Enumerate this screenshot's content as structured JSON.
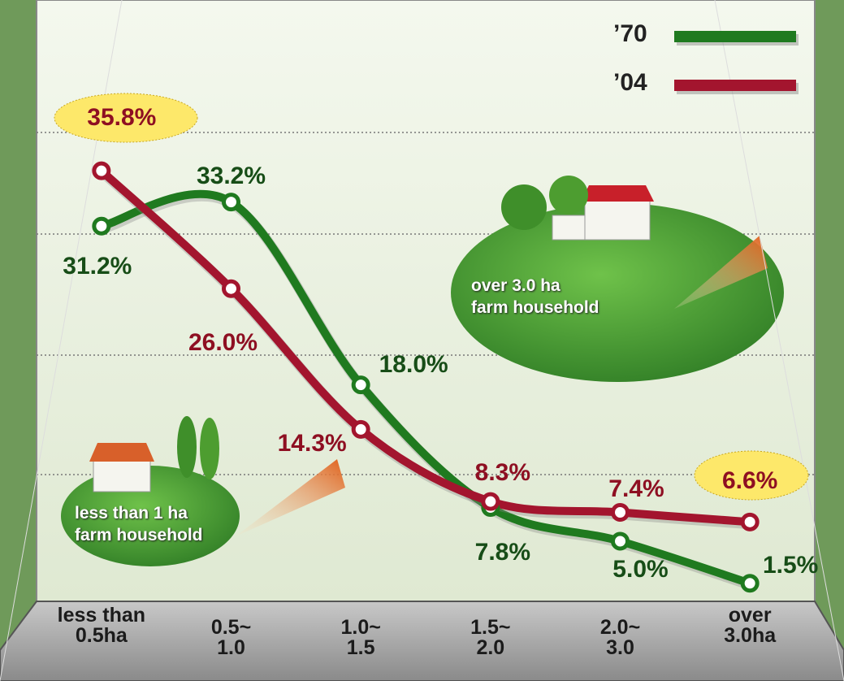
{
  "chart_data": {
    "type": "line",
    "categories": [
      "less than\n0.5ha",
      "0.5~\n1.0",
      "1.0~\n1.5",
      "1.5~\n2.0",
      "2.0~\n3.0",
      "over\n3.0ha"
    ],
    "series": [
      {
        "name": "’70",
        "color": "#1f7a1f",
        "label_color": "#174d17",
        "values": [
          31.2,
          33.2,
          18.0,
          7.8,
          5.0,
          1.5
        ],
        "value_labels": [
          "31.2%",
          "33.2%",
          "18.0%",
          "7.8%",
          "5.0%",
          "1.5%"
        ]
      },
      {
        "name": "’04",
        "color": "#a3152e",
        "label_color": "#8e0f22",
        "values": [
          35.8,
          26.0,
          14.3,
          8.3,
          7.4,
          6.6
        ],
        "value_labels": [
          "35.8%",
          "26.0%",
          "14.3%",
          "8.3%",
          "7.4%",
          "6.6%"
        ]
      }
    ],
    "ylim": [
      0,
      50
    ],
    "annotations": [
      "over 3.0 ha\nfarm household",
      "less than 1 ha\nfarm household"
    ]
  }
}
